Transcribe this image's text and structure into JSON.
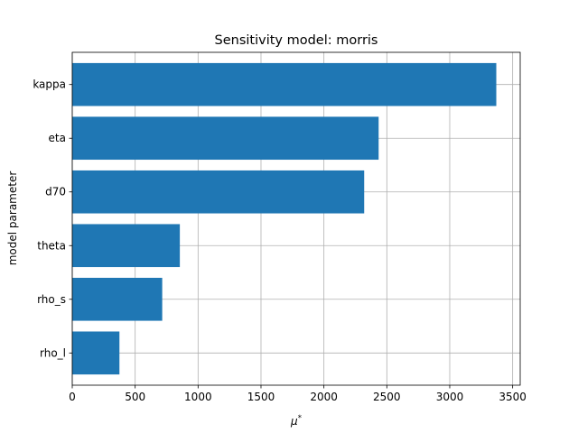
{
  "chart_data": {
    "type": "bar",
    "orientation": "horizontal",
    "title": "Sensitivity model: morris",
    "xlabel": "μ",
    "xlabel_superscript": "*",
    "ylabel": "model parameter",
    "categories": [
      "kappa",
      "eta",
      "d70",
      "theta",
      "rho_s",
      "rho_l"
    ],
    "values": [
      3370,
      2435,
      2320,
      855,
      715,
      375
    ],
    "xlim": [
      0,
      3560
    ],
    "xticks": [
      0,
      500,
      1000,
      1500,
      2000,
      2500,
      3000,
      3500
    ],
    "xtick_labels": [
      "0",
      "500",
      "1000",
      "1500",
      "2000",
      "2500",
      "3000",
      "3500"
    ],
    "grid": true,
    "bar_color": "#1f77b4"
  }
}
